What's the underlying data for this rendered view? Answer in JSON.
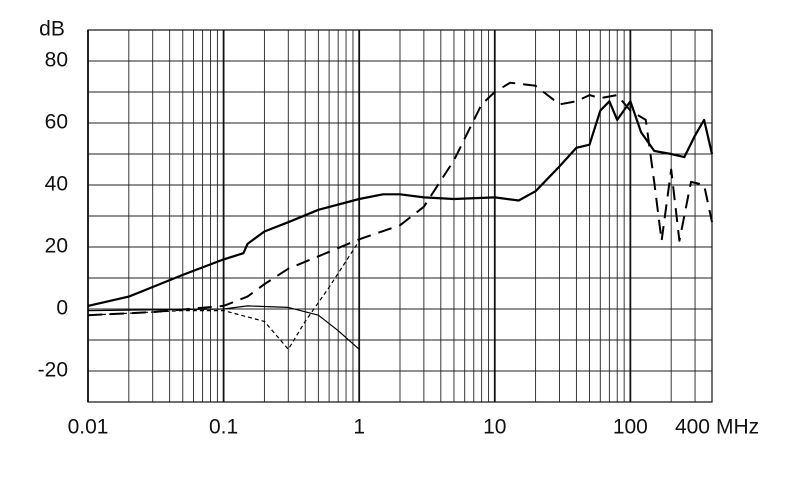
{
  "chart_data": {
    "type": "line",
    "y_label": "dB",
    "x_label": "MHz",
    "log_x": true,
    "grid": true,
    "xlim": [
      0.01,
      400
    ],
    "xticks": [
      0.01,
      0.1,
      1,
      10,
      100,
      400
    ],
    "x_minor_ticks": [
      0.02,
      0.03,
      0.04,
      0.05,
      0.06,
      0.07,
      0.08,
      0.09,
      0.2,
      0.3,
      0.4,
      0.5,
      0.6,
      0.7,
      0.8,
      0.9,
      2,
      3,
      4,
      5,
      6,
      7,
      8,
      9,
      20,
      30,
      40,
      50,
      60,
      70,
      80,
      90,
      200,
      300
    ],
    "ylim": [
      -30,
      90
    ],
    "yticks": [
      -20,
      0,
      20,
      40,
      60,
      80
    ],
    "y_minor_ticks": [
      -30,
      -10,
      10,
      30,
      50,
      70,
      90
    ],
    "series": [
      {
        "color": "#000000",
        "width": 2.2,
        "dash": "none",
        "x": [
          0.01,
          0.02,
          0.05,
          0.1,
          0.14,
          0.15,
          0.2,
          0.3,
          0.5,
          1,
          1.5,
          2,
          3,
          5,
          10,
          15,
          20,
          30,
          40,
          50,
          60,
          70,
          80,
          100,
          120,
          150,
          200,
          250,
          300,
          350,
          400
        ],
        "values": [
          1,
          4,
          11,
          16,
          18,
          21,
          25,
          28,
          32,
          35.5,
          37,
          37,
          36,
          35.5,
          36,
          35,
          38,
          46,
          52,
          53,
          64,
          67,
          61,
          67,
          57,
          51,
          50,
          49,
          56,
          61,
          50
        ]
      },
      {
        "color": "#000000",
        "width": 2,
        "dash": "14,8",
        "x": [
          0.01,
          0.03,
          0.1,
          0.15,
          0.2,
          0.3,
          0.5,
          1,
          2,
          3,
          5,
          8,
          10,
          13,
          20,
          30,
          40,
          50,
          60,
          80,
          100,
          130,
          150,
          170,
          200,
          230,
          280,
          350,
          400
        ],
        "values": [
          -2,
          -1,
          1,
          4,
          8,
          13,
          17,
          22.5,
          27,
          33,
          48,
          66,
          70,
          73,
          72,
          66,
          67,
          69,
          68,
          69,
          64,
          61,
          41,
          22,
          45,
          22,
          41,
          40,
          28
        ]
      },
      {
        "color": "#000000",
        "width": 1.2,
        "dash": "4,3",
        "x": [
          0.01,
          0.05,
          0.1,
          0.2,
          0.3,
          0.4,
          0.6,
          1
        ],
        "values": [
          -2,
          -0.5,
          -0.5,
          -4,
          -13,
          -4,
          7,
          22
        ]
      },
      {
        "color": "#000000",
        "width": 1.2,
        "dash": "none",
        "x": [
          0.01,
          0.1,
          0.15,
          0.3,
          0.5,
          0.7,
          1
        ],
        "values": [
          -0.5,
          0,
          1,
          0.5,
          -2,
          -7,
          -13
        ]
      }
    ]
  }
}
